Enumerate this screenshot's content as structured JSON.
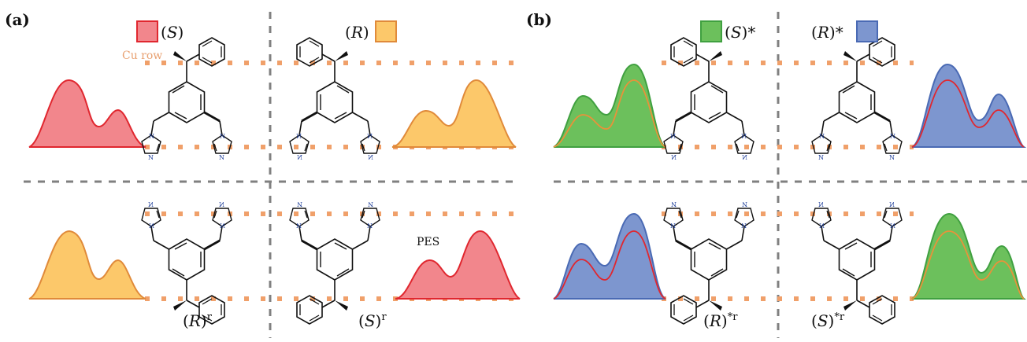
{
  "panels": {
    "a": {
      "label": "(a)",
      "cu_row_label": "Cu row",
      "pes_label": "PES",
      "top_left": {
        "name": "S",
        "sup": ""
      },
      "top_right": {
        "name": "R",
        "sup": ""
      },
      "bottom_left": {
        "name": "R",
        "sup": "r"
      },
      "bottom_right": {
        "name": "S",
        "sup": "r"
      }
    },
    "b": {
      "label": "(b)",
      "top_left": {
        "name": "S",
        "sup": "*"
      },
      "top_right": {
        "name": "R",
        "sup": "*"
      },
      "bottom_left": {
        "name": "R",
        "sup": "*r"
      },
      "bottom_right": {
        "name": "S",
        "sup": "*r"
      }
    }
  },
  "colors": {
    "S_fill": "#f2868c",
    "S_stroke": "#e0272f",
    "R_fill": "#fcc86a",
    "R_stroke": "#e08a3a",
    "Sstar_fill": "#6cc05c",
    "Sstar_stroke": "#40a040",
    "Rstar_fill": "#7d96cf",
    "Rstar_stroke": "#4a6ab4",
    "inner_red": "#e0272f",
    "inner_orange": "#e8923a",
    "cu_row": "#f0a06a",
    "divider": "#808080",
    "molecule": "#111111",
    "nitrogen": "#1f3f9a"
  }
}
